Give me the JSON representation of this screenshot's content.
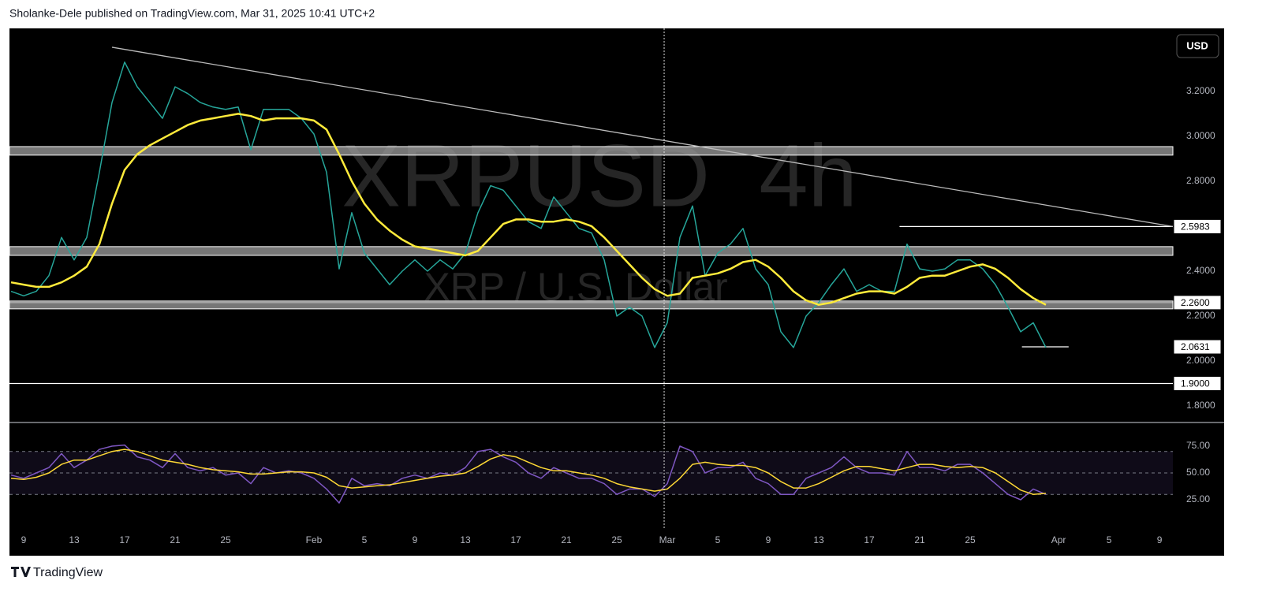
{
  "header": {
    "text": "Sholanke-Dele published on TradingView.com, Mar 31, 2025 10:41 UTC+2"
  },
  "footer": {
    "brand": "TradingView"
  },
  "chart_data": [
    {
      "type": "line",
      "watermark": "XRPUSD  4h",
      "watermark_sub": "XRP / U.S. Dollar",
      "currency": "USD",
      "x": [
        8,
        9,
        10,
        11,
        12,
        13,
        14,
        15,
        16,
        17,
        18,
        19,
        20,
        21,
        22,
        23,
        24,
        25,
        26,
        27,
        28,
        29,
        30,
        31,
        32,
        33,
        34,
        35,
        36,
        37,
        38,
        39,
        40,
        41,
        42,
        43,
        44,
        45,
        46,
        47,
        48,
        49,
        50,
        51,
        52,
        53,
        54,
        55,
        56,
        57,
        58,
        59,
        60,
        61,
        62,
        63,
        64,
        65,
        66,
        67,
        68,
        69,
        70,
        71,
        72,
        73,
        74,
        75,
        76,
        77,
        78,
        79,
        80,
        81,
        82,
        83,
        84,
        85,
        86,
        87,
        88,
        89,
        90
      ],
      "xlim": [
        7.875,
        100.06
      ],
      "ylim": [
        1.73,
        3.48
      ],
      "yticks": [
        {
          "value": 3.2,
          "label": "3.2000"
        },
        {
          "value": 3.0,
          "label": "3.0000"
        },
        {
          "value": 2.8,
          "label": "2.8000"
        },
        {
          "value": 2.4,
          "label": "2.4000"
        },
        {
          "value": 2.2,
          "label": "2.2000"
        },
        {
          "value": 2.0,
          "label": "2.0000"
        },
        {
          "value": 1.8,
          "label": "1.8000"
        }
      ],
      "series": [
        {
          "color": "#26a69a",
          "values": [
            2.31,
            2.29,
            2.31,
            2.38,
            2.55,
            2.45,
            2.55,
            2.84,
            3.15,
            3.33,
            3.22,
            3.15,
            3.08,
            3.22,
            3.19,
            3.15,
            3.13,
            3.12,
            3.13,
            2.94,
            3.12,
            3.12,
            3.12,
            3.08,
            3.01,
            2.84,
            2.41,
            2.66,
            2.48,
            2.41,
            2.34,
            2.4,
            2.45,
            2.4,
            2.45,
            2.41,
            2.48,
            2.66,
            2.78,
            2.76,
            2.69,
            2.62,
            2.59,
            2.73,
            2.66,
            2.59,
            2.57,
            2.45,
            2.2,
            2.24,
            2.2,
            2.06,
            2.17,
            2.55,
            2.69,
            2.38,
            2.48,
            2.52,
            2.59,
            2.41,
            2.34,
            2.13,
            2.06,
            2.2,
            2.26,
            2.34,
            2.41,
            2.31,
            2.34,
            2.31,
            2.31,
            2.52,
            2.41,
            2.4,
            2.41,
            2.45,
            2.45,
            2.41,
            2.34,
            2.24,
            2.13,
            2.17,
            2.06
          ]
        },
        {
          "color": "#ffeb3b",
          "values": [
            2.35,
            2.34,
            2.33,
            2.33,
            2.35,
            2.38,
            2.42,
            2.52,
            2.7,
            2.85,
            2.92,
            2.96,
            2.99,
            3.02,
            3.05,
            3.07,
            3.08,
            3.09,
            3.1,
            3.09,
            3.07,
            3.08,
            3.08,
            3.08,
            3.07,
            3.03,
            2.92,
            2.8,
            2.7,
            2.63,
            2.58,
            2.54,
            2.51,
            2.5,
            2.49,
            2.48,
            2.47,
            2.49,
            2.55,
            2.61,
            2.63,
            2.63,
            2.62,
            2.62,
            2.63,
            2.62,
            2.6,
            2.55,
            2.49,
            2.43,
            2.37,
            2.32,
            2.29,
            2.3,
            2.37,
            2.38,
            2.39,
            2.41,
            2.44,
            2.45,
            2.42,
            2.37,
            2.31,
            2.27,
            2.25,
            2.26,
            2.28,
            2.3,
            2.31,
            2.31,
            2.3,
            2.33,
            2.37,
            2.38,
            2.38,
            2.4,
            2.42,
            2.43,
            2.41,
            2.37,
            2.32,
            2.28,
            2.25
          ]
        }
      ],
      "zones": [
        [
          2.916,
          2.954
        ],
        [
          2.47,
          2.509
        ],
        [
          2.232,
          2.267
        ]
      ],
      "levels": [
        {
          "value": 2.5983,
          "label": "2.5983",
          "from": 78.4
        },
        {
          "value": 2.26,
          "label": "2.2600"
        },
        {
          "value": 2.0631,
          "label": "2.0631",
          "from": 88.1,
          "to": 91.8
        },
        {
          "value": 1.9,
          "label": "1.9000"
        }
      ],
      "trendline": {
        "x": [
          16,
          100.06
        ],
        "y": [
          3.396,
          2.5983
        ]
      },
      "crosshair_x": 59.75
    },
    {
      "type": "line",
      "x": [
        8,
        9,
        10,
        11,
        12,
        13,
        14,
        15,
        16,
        17,
        18,
        19,
        20,
        21,
        22,
        23,
        24,
        25,
        26,
        27,
        28,
        29,
        30,
        31,
        32,
        33,
        34,
        35,
        36,
        37,
        38,
        39,
        40,
        41,
        42,
        43,
        44,
        45,
        46,
        47,
        48,
        49,
        50,
        51,
        52,
        53,
        54,
        55,
        56,
        57,
        58,
        59,
        60,
        61,
        62,
        63,
        64,
        65,
        66,
        67,
        68,
        69,
        70,
        71,
        72,
        73,
        74,
        75,
        76,
        77,
        78,
        79,
        80,
        81,
        82,
        83,
        84,
        85,
        86,
        87,
        88,
        89,
        90
      ],
      "xlim": [
        7.875,
        100.06
      ],
      "xticks": [
        9,
        13,
        17,
        21,
        25,
        {
          "value": 32,
          "label": "Feb"
        },
        {
          "value": 36,
          "label": "5"
        },
        {
          "value": 40,
          "label": "9"
        },
        {
          "value": 44,
          "label": "13"
        },
        {
          "value": 48,
          "label": "17"
        },
        {
          "value": 52,
          "label": "21"
        },
        {
          "value": 56,
          "label": "25"
        },
        {
          "value": 60,
          "label": "Mar"
        },
        {
          "value": 64,
          "label": "5"
        },
        {
          "value": 68,
          "label": "9"
        },
        {
          "value": 72,
          "label": "13"
        },
        {
          "value": 76,
          "label": "17"
        },
        {
          "value": 80,
          "label": "21"
        },
        {
          "value": 84,
          "label": "25"
        },
        {
          "value": 91,
          "label": "Apr"
        },
        {
          "value": 95,
          "label": "5"
        },
        {
          "value": 99,
          "label": "9"
        }
      ],
      "ylim": [
        -2.9,
        96.3
      ],
      "yticks": [
        {
          "value": 75,
          "label": "75.00"
        },
        {
          "value": 50,
          "label": "50.00"
        },
        {
          "value": 25,
          "label": "25.00"
        }
      ],
      "band": [
        30,
        70
      ],
      "levels": [
        70,
        50,
        30
      ],
      "series": [
        {
          "color": "#7e57c2",
          "values": [
            48,
            45,
            50,
            55,
            68,
            55,
            62,
            72,
            75,
            76,
            65,
            62,
            55,
            68,
            55,
            52,
            55,
            48,
            50,
            40,
            55,
            50,
            52,
            50,
            45,
            35,
            22,
            45,
            38,
            40,
            38,
            45,
            48,
            45,
            50,
            48,
            55,
            70,
            72,
            65,
            60,
            50,
            45,
            55,
            50,
            45,
            45,
            40,
            30,
            35,
            35,
            28,
            40,
            75,
            70,
            50,
            55,
            55,
            60,
            45,
            40,
            30,
            30,
            45,
            50,
            55,
            65,
            55,
            50,
            50,
            48,
            70,
            55,
            55,
            52,
            58,
            58,
            50,
            40,
            30,
            25,
            35,
            30
          ]
        },
        {
          "color": "#fdd835",
          "values": [
            45,
            44,
            46,
            50,
            58,
            62,
            62,
            66,
            70,
            72,
            70,
            66,
            62,
            60,
            58,
            55,
            53,
            52,
            51,
            49,
            49,
            50,
            51,
            51,
            50,
            46,
            38,
            36,
            37,
            38,
            39,
            41,
            43,
            45,
            47,
            48,
            50,
            56,
            63,
            67,
            65,
            60,
            55,
            52,
            52,
            50,
            48,
            45,
            40,
            37,
            35,
            33,
            35,
            45,
            58,
            60,
            58,
            57,
            57,
            55,
            50,
            42,
            36,
            36,
            40,
            46,
            52,
            56,
            56,
            54,
            52,
            55,
            58,
            58,
            56,
            55,
            56,
            55,
            50,
            42,
            34,
            30,
            31
          ]
        }
      ]
    }
  ]
}
